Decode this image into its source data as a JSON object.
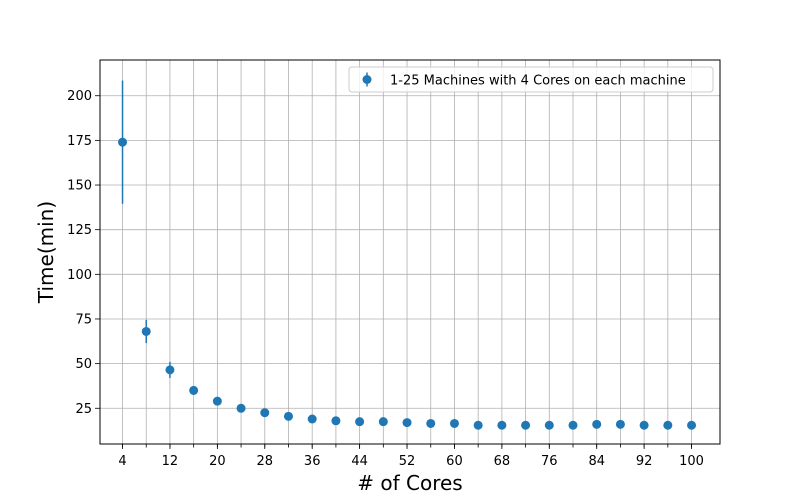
{
  "chart_data": {
    "type": "scatter",
    "title": "",
    "xlabel": "# of Cores",
    "ylabel": "Time(min)",
    "xlim": [
      0.2,
      104.8
    ],
    "ylim": [
      5,
      220
    ],
    "grid": true,
    "legend_position": "top-right",
    "x_ticks_labeled": [
      "4",
      "12",
      "20",
      "28",
      "36",
      "44",
      "52",
      "60",
      "68",
      "76",
      "84",
      "92",
      "100"
    ],
    "x_grid_values": [
      4,
      8,
      12,
      16,
      20,
      24,
      28,
      32,
      36,
      40,
      44,
      48,
      52,
      56,
      60,
      64,
      68,
      72,
      76,
      80,
      84,
      88,
      92,
      96,
      100
    ],
    "y_ticks": [
      "25",
      "50",
      "75",
      "100",
      "125",
      "150",
      "175",
      "200"
    ],
    "series": [
      {
        "name": "1-25 Machines with 4 Cores on each machine",
        "color": "#1f77b4",
        "x": [
          4,
          8,
          12,
          16,
          20,
          24,
          28,
          32,
          36,
          40,
          44,
          48,
          52,
          56,
          60,
          64,
          68,
          72,
          76,
          80,
          84,
          88,
          92,
          96,
          100
        ],
        "y": [
          174,
          68,
          46.5,
          35,
          29,
          25,
          22.5,
          20.5,
          19,
          18,
          17.5,
          17.5,
          17,
          16.5,
          16.5,
          15.5,
          15.5,
          15.5,
          15.5,
          15.5,
          16,
          16,
          15.5,
          15.5,
          15.5
        ],
        "yerr": [
          34.5,
          6.5,
          4.5,
          2.5,
          1.5,
          1.2,
          1,
          1,
          1,
          0.8,
          0.8,
          0.8,
          0.8,
          0.7,
          0.7,
          0.7,
          0.7,
          0.7,
          0.7,
          0.7,
          0.7,
          0.7,
          0.7,
          0.7,
          0.7
        ]
      }
    ]
  }
}
